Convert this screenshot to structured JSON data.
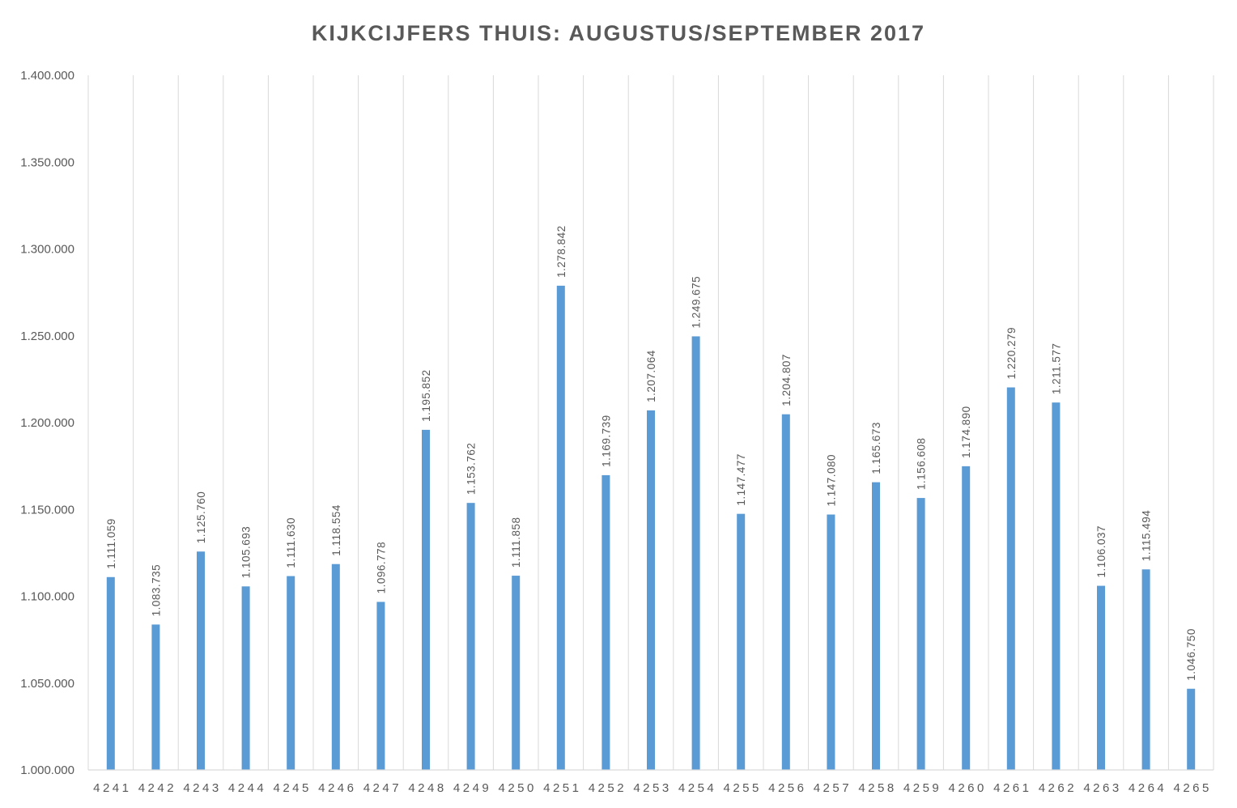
{
  "chart_data": {
    "type": "bar",
    "title": "KIJKCIJFERS THUIS: AUGUSTUS/SEPTEMBER 2017",
    "xlabel": "",
    "ylabel": "",
    "ylim": [
      1000000,
      1400000
    ],
    "y_ticks": [
      "1.000.000",
      "1.050.000",
      "1.100.000",
      "1.150.000",
      "1.200.000",
      "1.250.000",
      "1.300.000",
      "1.350.000",
      "1.400.000"
    ],
    "grid": "vertical",
    "bar_color": "#5b9bd5",
    "categories": [
      "4241",
      "4242",
      "4243",
      "4244",
      "4245",
      "4246",
      "4247",
      "4248",
      "4249",
      "4250",
      "4251",
      "4252",
      "4253",
      "4254",
      "4255",
      "4256",
      "4257",
      "4258",
      "4259",
      "4260",
      "4261",
      "4262",
      "4263",
      "4264",
      "4265"
    ],
    "values": [
      1111059,
      1083735,
      1125760,
      1105693,
      1111630,
      1118554,
      1096778,
      1195852,
      1153762,
      1111858,
      1278842,
      1169739,
      1207064,
      1249675,
      1147477,
      1204807,
      1147080,
      1165673,
      1156608,
      1174890,
      1220279,
      1211577,
      1106037,
      1115494,
      1046750
    ],
    "data_labels": [
      "1.111.059",
      "1.083.735",
      "1.125.760",
      "1.105.693",
      "1.111.630",
      "1.118.554",
      "1.096.778",
      "1.195.852",
      "1.153.762",
      "1.111.858",
      "1.278.842",
      "1.169.739",
      "1.207.064",
      "1.249.675",
      "1.147.477",
      "1.204.807",
      "1.147.080",
      "1.165.673",
      "1.156.608",
      "1.174.890",
      "1.220.279",
      "1.211.577",
      "1.106.037",
      "1.115.494",
      "1.046.750"
    ]
  }
}
